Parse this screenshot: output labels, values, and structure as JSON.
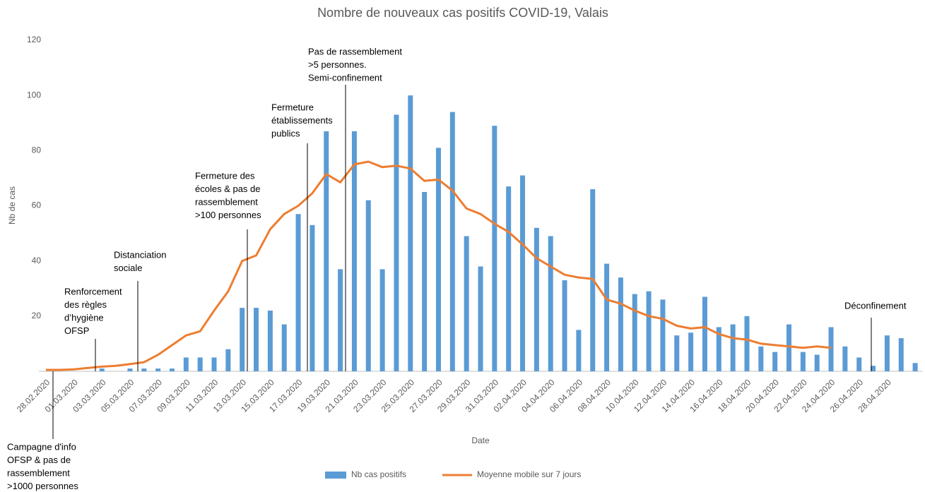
{
  "chart_data": {
    "type": "bar_line",
    "title": "Nombre de nouveaux cas positifs COVID-19, Valais",
    "x_label": "Date",
    "y_label": "Nb de cas",
    "categories": [
      "28.02.2020",
      null,
      "01.03.2020",
      null,
      "03.03.2020",
      null,
      "05.03.2020",
      null,
      "07.03.2020",
      null,
      "09.03.2020",
      null,
      "11.03.2020",
      null,
      "13.03.2020",
      null,
      "15.03.2020",
      null,
      "17.03.2020",
      null,
      "19.03.2020",
      null,
      "21.03.2020",
      null,
      "23.03.2020",
      null,
      "25.03.2020",
      null,
      "27.03.2020",
      null,
      "29.03.2020",
      null,
      "31.03.2020",
      null,
      "02.04.2020",
      null,
      "04.04.2020",
      null,
      "06.04.2020",
      null,
      "08.04.2020",
      null,
      "10.04.2020",
      null,
      "12.04.2020",
      null,
      "14.04.2020",
      null,
      "16.04.2020",
      null,
      "18.04.2020",
      null,
      "20.04.2020",
      null,
      "22.04.2020",
      null,
      "24.04.2020",
      null,
      "26.04.2020",
      null,
      "28.04.2020",
      null,
      null
    ],
    "series": [
      {
        "name": "Nb cas positifs",
        "type": "bar",
        "color": "#5b9bd5",
        "values": [
          0,
          0,
          0,
          0,
          1,
          0,
          1,
          1,
          1,
          1,
          5,
          5,
          5,
          8,
          23,
          23,
          22,
          17,
          57,
          53,
          87,
          37,
          87,
          62,
          37,
          93,
          100,
          65,
          81,
          94,
          49,
          38,
          89,
          67,
          71,
          52,
          49,
          33,
          15,
          66,
          39,
          34,
          28,
          29,
          26,
          13,
          14,
          27,
          16,
          17,
          20,
          9,
          7,
          17,
          7,
          6,
          16,
          9,
          5,
          2,
          13,
          12,
          3
        ]
      },
      {
        "name": "Moyenne mobile sur 7 jours",
        "type": "line",
        "color": "#ed7d31",
        "values": [
          0.5,
          0.5,
          0.7,
          1.2,
          1.7,
          2,
          2.6,
          3.3,
          6,
          9.5,
          13,
          14.5,
          22,
          29,
          40,
          42,
          51.5,
          57,
          60,
          64.5,
          71.5,
          68.5,
          75,
          76,
          74,
          74.5,
          73.5,
          69,
          69.5,
          65.5,
          59,
          57,
          53.5,
          50.5,
          46,
          41,
          38,
          35,
          34,
          33.5,
          26,
          24.5,
          22,
          20,
          19,
          16.5,
          15.5,
          16,
          13.5,
          12,
          11.5,
          10,
          9.5,
          9,
          8.5,
          9,
          8.5,
          null,
          null,
          null,
          null,
          null,
          null
        ]
      }
    ],
    "ylim": [
      0,
      120
    ],
    "yticks": [
      20,
      40,
      60,
      80,
      100,
      120
    ],
    "grid": false,
    "legend": "bottom",
    "annotations": [
      {
        "lines": [
          "Campagne d'info",
          "OFSP & pas de",
          "rassemblement",
          ">1000 personnes"
        ]
      },
      {
        "lines": [
          "Renforcement",
          "des règles",
          "d’hygiène",
          "OFSP"
        ]
      },
      {
        "lines": [
          "Distanciation",
          "sociale"
        ]
      },
      {
        "lines": [
          "Fermeture des",
          "écoles & pas de",
          "rassemblement",
          ">100 personnes"
        ]
      },
      {
        "lines": [
          "Fermeture",
          "établissements",
          "publics"
        ]
      },
      {
        "lines": [
          "Pas de rassemblement",
          ">5 personnes.",
          "Semi-confinement"
        ]
      },
      {
        "lines": [
          "Déconfinement"
        ]
      }
    ]
  }
}
